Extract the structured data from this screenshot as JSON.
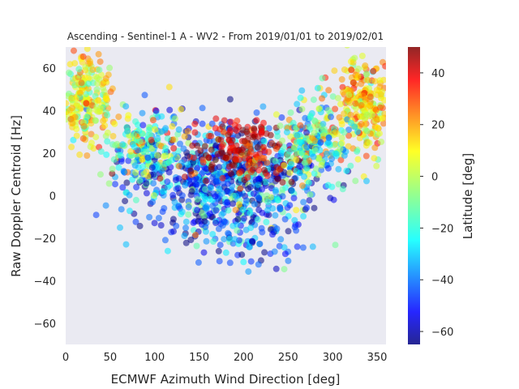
{
  "chart_data": {
    "type": "scatter",
    "title": "Ascending - Sentinel-1 A - WV2 - From 2019/01/01 to 2019/02/01",
    "xlabel": "ECMWF Azimuth Wind Direction [deg]",
    "ylabel": "Raw Doppler Centroid [Hz]",
    "xlim": [
      0,
      360
    ],
    "ylim": [
      -70,
      70
    ],
    "xticks": [
      0,
      50,
      100,
      150,
      200,
      250,
      300,
      350
    ],
    "yticks": [
      -60,
      -40,
      -20,
      0,
      20,
      40,
      60
    ],
    "grid": false,
    "background": "#eaeaf2",
    "colorbar": {
      "label": "Latitude [deg]",
      "colormap": "jet",
      "range": [
        -65,
        50
      ],
      "ticks": [
        -60,
        -40,
        -20,
        0,
        20,
        40
      ]
    },
    "clusters": [
      {
        "x_center": 20,
        "y_center": 45,
        "x_spread": 18,
        "y_spread": 12,
        "lat_center": 5,
        "lat_spread": 12,
        "count": 260
      },
      {
        "x_center": 335,
        "y_center": 42,
        "x_spread": 18,
        "y_spread": 12,
        "lat_center": 10,
        "lat_spread": 12,
        "count": 280
      },
      {
        "x_center": 180,
        "y_center": 8,
        "x_spread": 55,
        "y_spread": 13,
        "lat_center": -40,
        "lat_spread": 22,
        "count": 750
      },
      {
        "x_center": 200,
        "y_center": 22,
        "x_spread": 35,
        "y_spread": 8,
        "lat_center": 40,
        "lat_spread": 10,
        "count": 180
      },
      {
        "x_center": 90,
        "y_center": 22,
        "x_spread": 20,
        "y_spread": 10,
        "lat_center": -15,
        "lat_spread": 20,
        "count": 180
      },
      {
        "x_center": 280,
        "y_center": 25,
        "x_spread": 20,
        "y_spread": 10,
        "lat_center": -15,
        "lat_spread": 20,
        "count": 200
      },
      {
        "x_center": 210,
        "y_center": -22,
        "x_spread": 35,
        "y_spread": 7,
        "lat_center": -40,
        "lat_spread": 15,
        "count": 70
      }
    ]
  }
}
